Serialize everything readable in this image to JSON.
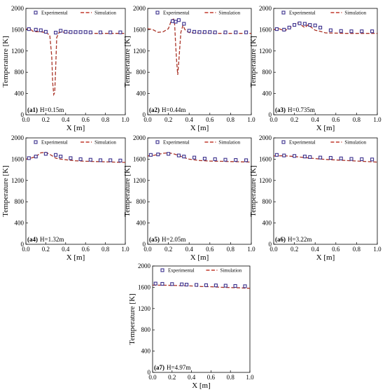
{
  "legend": {
    "experimental": "Experimental",
    "simulation": "Simulation"
  },
  "colors": {
    "experimental_marker": "#3a2f8c",
    "simulation_line": "#c0392b",
    "simulation_line_dark": "#a93226"
  },
  "chart_data": [
    {
      "type": "line",
      "panel_id": "(a1)",
      "panel_value": "H=0.15m",
      "xlabel": "X [m]",
      "ylabel": "Temperature [K]",
      "xlim": [
        0.0,
        1.0
      ],
      "ylim": [
        0,
        2000
      ],
      "xticks": [
        "0.0",
        "0.2",
        "0.4",
        "0.6",
        "0.8",
        "1.0"
      ],
      "yticks": [
        "0",
        "400",
        "800",
        "1200",
        "1600",
        "2000"
      ],
      "grid": false,
      "legend_position": "top",
      "series": [
        {
          "name": "Experimental",
          "kind": "scatter",
          "x": [
            0.03,
            0.1,
            0.15,
            0.2,
            0.3,
            0.35,
            0.4,
            0.45,
            0.5,
            0.55,
            0.6,
            0.65,
            0.75,
            0.85,
            0.95
          ],
          "y": [
            1610,
            1600,
            1590,
            1560,
            1545,
            1580,
            1560,
            1555,
            1555,
            1555,
            1555,
            1550,
            1550,
            1550,
            1550
          ]
        },
        {
          "name": "Simulation",
          "kind": "line",
          "x": [
            0.0,
            0.04,
            0.07,
            0.1,
            0.15,
            0.2,
            0.24,
            0.26,
            0.27,
            0.28,
            0.29,
            0.3,
            0.31,
            0.33,
            0.36,
            0.4,
            0.5,
            0.6,
            0.7,
            0.8,
            0.9,
            1.0
          ],
          "y": [
            1610,
            1620,
            1570,
            1560,
            1560,
            1545,
            1500,
            1100,
            600,
            380,
            420,
            900,
            1450,
            1540,
            1560,
            1545,
            1535,
            1535,
            1530,
            1530,
            1530,
            1530
          ]
        }
      ]
    },
    {
      "type": "line",
      "panel_id": "(a2)",
      "panel_value": "H=0.44m",
      "xlabel": "X [m]",
      "ylabel": "Temperature [K]",
      "xlim": [
        0.0,
        1.0
      ],
      "ylim": [
        0,
        2000
      ],
      "xticks": [
        "0.0",
        "0.2",
        "0.4",
        "0.6",
        "0.8",
        "1.0"
      ],
      "yticks": [
        "0",
        "400",
        "800",
        "1200",
        "1600",
        "2000"
      ],
      "grid": false,
      "legend_position": "top",
      "series": [
        {
          "name": "Experimental",
          "kind": "scatter",
          "x": [
            0.24,
            0.27,
            0.3,
            0.35,
            0.4,
            0.45,
            0.5,
            0.55,
            0.6,
            0.65,
            0.75,
            0.85,
            0.95
          ],
          "y": [
            1760,
            1750,
            1780,
            1710,
            1580,
            1560,
            1555,
            1555,
            1555,
            1550,
            1550,
            1550,
            1550
          ]
        },
        {
          "name": "Simulation",
          "kind": "line",
          "x": [
            0.0,
            0.05,
            0.1,
            0.15,
            0.2,
            0.23,
            0.25,
            0.26,
            0.27,
            0.28,
            0.29,
            0.3,
            0.32,
            0.34,
            0.36,
            0.4,
            0.5,
            0.6,
            0.7,
            0.8,
            0.9,
            1.0
          ],
          "y": [
            1620,
            1600,
            1550,
            1560,
            1620,
            1780,
            1800,
            1700,
            1300,
            1000,
            750,
            1000,
            1550,
            1680,
            1600,
            1545,
            1535,
            1535,
            1530,
            1530,
            1530,
            1530
          ]
        }
      ]
    },
    {
      "type": "line",
      "panel_id": "(a3)",
      "panel_value": "H=0.735m",
      "xlabel": "X [m]",
      "ylabel": "Temperature [K]",
      "xlim": [
        0.0,
        1.0
      ],
      "ylim": [
        0,
        2000
      ],
      "xticks": [
        "0.0",
        "0.2",
        "0.4",
        "0.6",
        "0.8",
        "1.0"
      ],
      "yticks": [
        "0",
        "400",
        "800",
        "1200",
        "1600",
        "2000"
      ],
      "grid": false,
      "legend_position": "top",
      "series": [
        {
          "name": "Experimental",
          "kind": "scatter",
          "x": [
            0.03,
            0.1,
            0.15,
            0.2,
            0.25,
            0.3,
            0.35,
            0.4,
            0.45,
            0.55,
            0.65,
            0.75,
            0.85,
            0.95
          ],
          "y": [
            1610,
            1600,
            1640,
            1690,
            1720,
            1710,
            1690,
            1680,
            1640,
            1590,
            1575,
            1570,
            1570,
            1570
          ]
        },
        {
          "name": "Simulation",
          "kind": "line",
          "x": [
            0.0,
            0.05,
            0.1,
            0.15,
            0.2,
            0.24,
            0.27,
            0.3,
            0.33,
            0.36,
            0.4,
            0.45,
            0.5,
            0.6,
            0.7,
            0.8,
            0.9,
            1.0
          ],
          "y": [
            1600,
            1620,
            1580,
            1620,
            1700,
            1730,
            1680,
            1640,
            1690,
            1650,
            1590,
            1570,
            1540,
            1535,
            1530,
            1530,
            1530,
            1530
          ]
        }
      ]
    },
    {
      "type": "line",
      "panel_id": "(a4)",
      "panel_value": "H=1.32m",
      "xlabel": "X [m]",
      "ylabel": "Temperature [K]",
      "xlim": [
        0.0,
        1.0
      ],
      "ylim": [
        0,
        2000
      ],
      "xticks": [
        "0.0",
        "0.2",
        "0.4",
        "0.6",
        "0.8",
        "1.0"
      ],
      "yticks": [
        "0",
        "400",
        "800",
        "1200",
        "1600",
        "2000"
      ],
      "grid": false,
      "legend_position": "top",
      "series": [
        {
          "name": "Experimental",
          "kind": "scatter",
          "x": [
            0.03,
            0.1,
            0.2,
            0.3,
            0.35,
            0.45,
            0.55,
            0.65,
            0.75,
            0.85,
            0.95
          ],
          "y": [
            1620,
            1650,
            1700,
            1680,
            1650,
            1620,
            1600,
            1590,
            1580,
            1580,
            1575
          ]
        },
        {
          "name": "Simulation",
          "kind": "line",
          "x": [
            0.0,
            0.05,
            0.1,
            0.15,
            0.2,
            0.25,
            0.3,
            0.35,
            0.4,
            0.5,
            0.6,
            0.7,
            0.8,
            0.9,
            1.0
          ],
          "y": [
            1600,
            1620,
            1650,
            1720,
            1730,
            1680,
            1620,
            1600,
            1590,
            1570,
            1560,
            1555,
            1550,
            1545,
            1540
          ]
        }
      ]
    },
    {
      "type": "line",
      "panel_id": "(a5)",
      "panel_value": "H=2.05m",
      "xlabel": "X [m]",
      "ylabel": "Temperature [K]",
      "xlim": [
        0.0,
        1.0
      ],
      "ylim": [
        0,
        2000
      ],
      "xticks": [
        "0.0",
        "0.2",
        "0.4",
        "0.6",
        "0.8",
        "1.0"
      ],
      "yticks": [
        "0",
        "400",
        "800",
        "1200",
        "1600",
        "2000"
      ],
      "grid": false,
      "legend_position": "top",
      "series": [
        {
          "name": "Experimental",
          "kind": "scatter",
          "x": [
            0.03,
            0.1,
            0.2,
            0.3,
            0.35,
            0.45,
            0.55,
            0.65,
            0.75,
            0.85,
            0.95
          ],
          "y": [
            1680,
            1690,
            1700,
            1670,
            1650,
            1630,
            1610,
            1600,
            1590,
            1585,
            1580
          ]
        },
        {
          "name": "Simulation",
          "kind": "line",
          "x": [
            0.0,
            0.05,
            0.1,
            0.15,
            0.2,
            0.25,
            0.3,
            0.35,
            0.4,
            0.5,
            0.6,
            0.7,
            0.8,
            0.9,
            1.0
          ],
          "y": [
            1660,
            1670,
            1690,
            1710,
            1720,
            1700,
            1670,
            1630,
            1600,
            1575,
            1565,
            1560,
            1555,
            1550,
            1545
          ]
        }
      ]
    },
    {
      "type": "line",
      "panel_id": "(a6)",
      "panel_value": "H=3.22m",
      "xlabel": "X [m]",
      "ylabel": "Temperature [K]",
      "xlim": [
        0.0,
        1.0
      ],
      "ylim": [
        0,
        2000
      ],
      "xticks": [
        "0.0",
        "0.2",
        "0.4",
        "0.6",
        "0.8",
        "1.0"
      ],
      "yticks": [
        "0",
        "400",
        "800",
        "1200",
        "1600",
        "2000"
      ],
      "grid": false,
      "legend_position": "top",
      "series": [
        {
          "name": "Experimental",
          "kind": "scatter",
          "x": [
            0.03,
            0.1,
            0.2,
            0.3,
            0.35,
            0.45,
            0.55,
            0.65,
            0.75,
            0.85,
            0.95
          ],
          "y": [
            1680,
            1670,
            1660,
            1650,
            1640,
            1630,
            1625,
            1615,
            1605,
            1600,
            1595
          ]
        },
        {
          "name": "Simulation",
          "kind": "line",
          "x": [
            0.0,
            0.1,
            0.2,
            0.3,
            0.4,
            0.5,
            0.6,
            0.7,
            0.8,
            0.9,
            1.0
          ],
          "y": [
            1660,
            1665,
            1650,
            1630,
            1610,
            1595,
            1585,
            1575,
            1565,
            1555,
            1545
          ]
        }
      ]
    },
    {
      "type": "line",
      "panel_id": "(a7)",
      "panel_value": "H=4.97m",
      "xlabel": "X [m]",
      "ylabel": "Temperature [K]",
      "xlim": [
        0.0,
        1.0
      ],
      "ylim": [
        0,
        2000
      ],
      "xticks": [
        "0.0",
        "0.2",
        "0.4",
        "0.6",
        "0.8",
        "1.0"
      ],
      "yticks": [
        "0",
        "400",
        "800",
        "1200",
        "1600",
        "2000"
      ],
      "grid": false,
      "legend_position": "top",
      "series": [
        {
          "name": "Experimental",
          "kind": "scatter",
          "x": [
            0.03,
            0.1,
            0.2,
            0.3,
            0.35,
            0.45,
            0.55,
            0.65,
            0.75,
            0.85,
            0.95
          ],
          "y": [
            1670,
            1665,
            1660,
            1655,
            1650,
            1645,
            1640,
            1635,
            1630,
            1625,
            1620
          ]
        },
        {
          "name": "Simulation",
          "kind": "line",
          "x": [
            0.0,
            0.1,
            0.2,
            0.3,
            0.4,
            0.5,
            0.6,
            0.7,
            0.8,
            0.9,
            1.0
          ],
          "y": [
            1640,
            1640,
            1635,
            1630,
            1625,
            1615,
            1610,
            1600,
            1595,
            1590,
            1580
          ]
        }
      ]
    }
  ]
}
